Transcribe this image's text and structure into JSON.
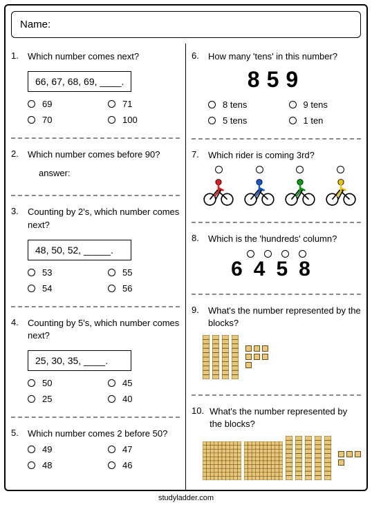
{
  "name_label": "Name:",
  "footer": "studyladder.com",
  "left": [
    {
      "num": "1.",
      "text": "Which number comes next?",
      "box": "66, 67, 68, 69, ____.",
      "options": [
        "69",
        "71",
        "70",
        "100"
      ]
    },
    {
      "num": "2.",
      "text": "Which number comes before 90?",
      "answer_label": "answer:"
    },
    {
      "num": "3.",
      "text": "Counting by 2's, which number comes next?",
      "box": "48, 50, 52, _____.",
      "options": [
        "53",
        "55",
        "54",
        "56"
      ]
    },
    {
      "num": "4.",
      "text": "Counting by 5's, which number comes next?",
      "box": "25, 30, 35,  ____.",
      "options": [
        "50",
        "45",
        "25",
        "40"
      ]
    },
    {
      "num": "5.",
      "text": "Which number comes 2 before 50?",
      "options": [
        "49",
        "47",
        "48",
        "46"
      ]
    }
  ],
  "right": [
    {
      "num": "6.",
      "text": "How many 'tens' in this number?",
      "big": "859",
      "options": [
        "8 tens",
        "9 tens",
        "5 tens",
        "1 ten"
      ]
    },
    {
      "num": "7.",
      "text": "Which rider is coming 3rd?",
      "riders": {
        "colors": [
          "#d62222",
          "#1757c9",
          "#0a9b12",
          "#e8c40f"
        ]
      }
    },
    {
      "num": "8.",
      "text": "Which is the 'hundreds' column?",
      "digits": "6458",
      "col_count": 4
    },
    {
      "num": "9.",
      "text": "What's the number represented by the blocks?",
      "blocks": {
        "tens": 4,
        "ones": 7
      }
    },
    {
      "num": "10.",
      "text": "What's the number represented by the blocks?",
      "blocks": {
        "hundreds": 2,
        "tens": 5,
        "ones": 4
      }
    }
  ]
}
